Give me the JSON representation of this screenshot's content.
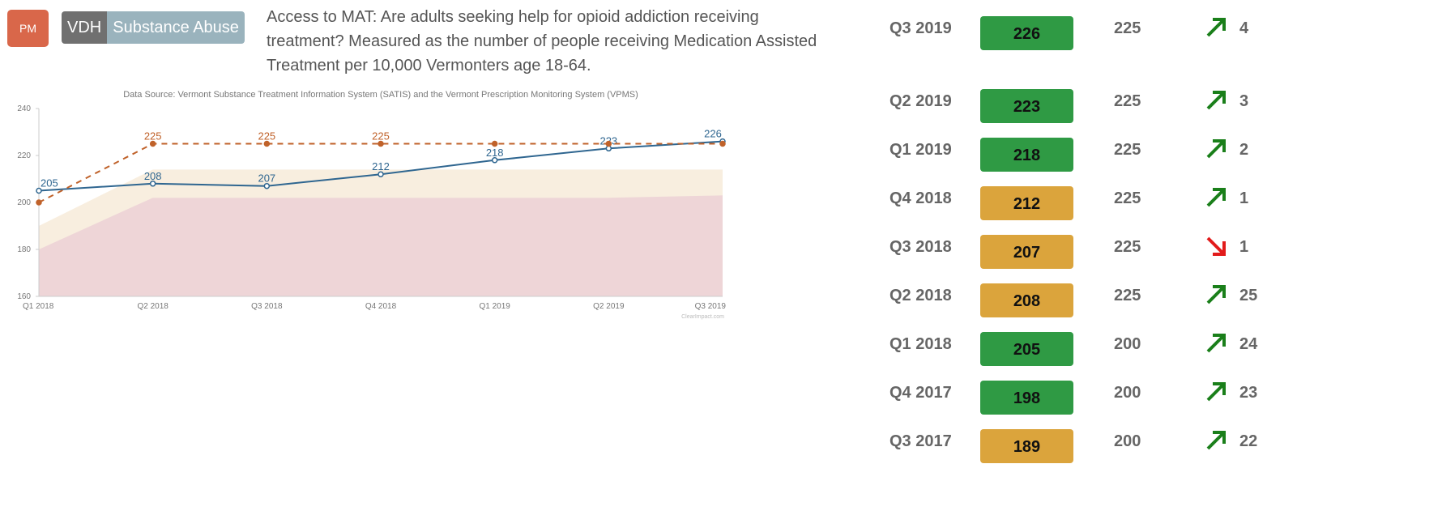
{
  "header": {
    "badge": "PM",
    "tag_org": "VDH",
    "tag_topic": "Substance Abuse",
    "measure_text": "Access to MAT: Are adults seeking help for opioid addiction receiving treatment? Measured as the number of people receiving Medication Assisted Treatment per 10,000 Vermonters age 18-64."
  },
  "chart_data": {
    "type": "line",
    "title": "Data Source: Vermont Substance Treatment Information System (SATIS) and the Vermont Prescription Monitoring System (VPMS)",
    "watermark": "ClearImpact.com",
    "categories": [
      "Q1 2018",
      "Q2 2018",
      "Q3 2018",
      "Q4 2018",
      "Q1 2019",
      "Q2 2019",
      "Q3 2019"
    ],
    "ylim": [
      160,
      240
    ],
    "yticks": [
      160,
      180,
      200,
      220,
      240
    ],
    "series": [
      {
        "role": "actual",
        "color": "#2f6690",
        "values": [
          205,
          208,
          207,
          212,
          218,
          223,
          226
        ]
      },
      {
        "role": "target",
        "color": "#c0622a",
        "values": [
          200,
          225,
          225,
          225,
          225,
          225,
          225
        ]
      }
    ],
    "bands": [
      {
        "role": "lower-band",
        "color": "#eed5d7",
        "values": [
          180,
          202,
          202,
          202,
          202,
          202,
          203
        ]
      },
      {
        "role": "upper-band",
        "color": "#f8eedf",
        "values": [
          190,
          214,
          214,
          214,
          214,
          214,
          214
        ]
      }
    ],
    "grid": false
  },
  "table": {
    "colors": {
      "green": "#2f9a44",
      "orange": "#dba43c",
      "up": "#1a7f1a",
      "down": "#e21b1b"
    },
    "rows": [
      {
        "period": "Q3 2019",
        "actual": "226",
        "status": "green",
        "target": "225",
        "trend": "up",
        "count": "4"
      },
      {
        "period": "Q2 2019",
        "actual": "223",
        "status": "green",
        "target": "225",
        "trend": "up",
        "count": "3"
      },
      {
        "period": "Q1 2019",
        "actual": "218",
        "status": "green",
        "target": "225",
        "trend": "up",
        "count": "2"
      },
      {
        "period": "Q4 2018",
        "actual": "212",
        "status": "orange",
        "target": "225",
        "trend": "up",
        "count": "1"
      },
      {
        "period": "Q3 2018",
        "actual": "207",
        "status": "orange",
        "target": "225",
        "trend": "down",
        "count": "1"
      },
      {
        "period": "Q2 2018",
        "actual": "208",
        "status": "orange",
        "target": "225",
        "trend": "up",
        "count": "25"
      },
      {
        "period": "Q1 2018",
        "actual": "205",
        "status": "green",
        "target": "200",
        "trend": "up",
        "count": "24"
      },
      {
        "period": "Q4 2017",
        "actual": "198",
        "status": "green",
        "target": "200",
        "trend": "up",
        "count": "23"
      },
      {
        "period": "Q3 2017",
        "actual": "189",
        "status": "orange",
        "target": "200",
        "trend": "up",
        "count": "22"
      }
    ]
  }
}
